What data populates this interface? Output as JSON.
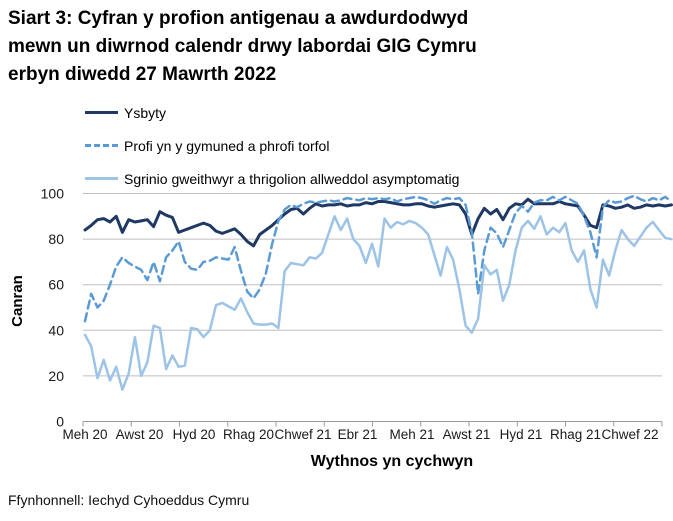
{
  "title": "Siart 3: Cyfran y profion antigenau a awdurdodwyd mewn un diwrnod calendr drwy labordai GIG Cymru erbyn diwedd 27 Mawrth 2022",
  "footer": "Ffynhonnell: Iechyd Cyhoeddus Cymru",
  "legend": {
    "items": [
      {
        "label": "Ysbyty"
      },
      {
        "label": "Profi yn y gymuned a phrofi torfol"
      },
      {
        "label": "Sgrinio gweithwyr a thrigolion allweddol asymptomatig"
      }
    ]
  },
  "chart_data": {
    "type": "line",
    "title": "Siart 3: Cyfran y profion antigenau a awdurdodwyd mewn un diwrnod calendr drwy labordai GIG Cymru erbyn diwedd 27 Mawrth 2022",
    "xlabel": "Wythnos yn cychwyn",
    "ylabel": "Canran",
    "ylim": [
      0,
      100
    ],
    "y_ticks": [
      0,
      20,
      40,
      60,
      80,
      100
    ],
    "x_tick_labels": [
      "Meh 20",
      "Awst 20",
      "Hyd 20",
      "Rhag 20",
      "Chwef 21",
      "Ebr 21",
      "Meh 21",
      "Awst 21",
      "Hyd 21",
      "Rhag 21",
      "Chwef 22"
    ],
    "x_unit": "wythnosol (weekly points, Meh 2020 - Maw 2022)",
    "grid": "horizontal",
    "legend_position": "top-left",
    "colors": {
      "gridline": "#BFBFBF",
      "axis": "#9B9B9B",
      "text": "#1a1a1a"
    },
    "series": [
      {
        "name": "Ysbyty",
        "style": "solid",
        "color": "#1F3864",
        "values": [
          84,
          86,
          88.5,
          89,
          87.5,
          90,
          83,
          88.5,
          87.5,
          88,
          88.5,
          85.5,
          92,
          90.5,
          89.5,
          83,
          84,
          85,
          86,
          87,
          86,
          83.5,
          82.5,
          83.5,
          84.5,
          82,
          79,
          77,
          82,
          84,
          86,
          88.5,
          91,
          93,
          93.5,
          91,
          93.5,
          95.5,
          94.5,
          95,
          95,
          95.5,
          94.5,
          95,
          95,
          96,
          95.5,
          96.5,
          96.5,
          96,
          95.5,
          95,
          95,
          95.5,
          95.5,
          94.5,
          94,
          94.5,
          95,
          95.5,
          95,
          91,
          82,
          89,
          93.5,
          91,
          93,
          88.5,
          93.5,
          95.5,
          95,
          97.5,
          95.5,
          95.5,
          95.5,
          95.5,
          96.5,
          95.5,
          95,
          94.5,
          90.5,
          86,
          85,
          95,
          94.5,
          93.5,
          94,
          95,
          93.5,
          94,
          95,
          94.5,
          95,
          94.5,
          95
        ]
      },
      {
        "name": "Profi yn y gymuned a phrofi torfol",
        "style": "dashed",
        "color": "#5B9BD5",
        "values": [
          44,
          56,
          50,
          53,
          60,
          68,
          72,
          69.5,
          68,
          66.5,
          62,
          70,
          61.5,
          72,
          75,
          79,
          70,
          67,
          66.5,
          70,
          70.5,
          72,
          71.5,
          71,
          76.5,
          66,
          57,
          54,
          58,
          65,
          78,
          88,
          93,
          95,
          94,
          95.5,
          96.5,
          96,
          96.5,
          97,
          96.5,
          97,
          98,
          97.5,
          97,
          98,
          97.5,
          98,
          97.5,
          98,
          96.5,
          97.5,
          98,
          98.5,
          98,
          97,
          95.5,
          97,
          98,
          97.5,
          98,
          95,
          83,
          56,
          75,
          85,
          82.5,
          76.5,
          84,
          91.5,
          94.5,
          92,
          96,
          97,
          97,
          98.5,
          97,
          98.5,
          97,
          95.5,
          90,
          83,
          72,
          94,
          97,
          96,
          96.5,
          98,
          99,
          97.5,
          96.5,
          98,
          97,
          98.5,
          96.5
        ]
      },
      {
        "name": "Sgrinio gweithwyr a thrigolion allweddol asymptomatig",
        "style": "solid",
        "color": "#9DC3E6",
        "values": [
          38,
          33,
          19,
          27,
          18,
          24,
          14,
          21,
          37,
          20,
          26,
          42,
          41,
          23,
          29,
          24,
          24.5,
          41,
          40.5,
          37,
          40,
          51,
          52,
          50.5,
          49,
          54,
          48,
          43,
          42.5,
          42.5,
          43,
          41,
          66,
          69.5,
          69,
          68.5,
          72,
          71.5,
          74,
          82,
          90,
          84,
          89,
          80,
          77,
          69.5,
          78,
          68,
          89,
          85,
          87.5,
          86.5,
          88,
          87,
          85,
          82,
          73,
          64,
          76.5,
          71,
          58,
          42,
          39,
          45,
          68.5,
          64.5,
          66.5,
          53,
          60,
          75,
          85,
          88,
          84.5,
          90,
          82,
          85,
          83,
          87,
          75,
          70,
          75,
          58,
          50,
          71,
          64,
          75,
          84,
          80,
          77,
          81,
          85,
          87.5,
          84,
          80.5,
          80
        ]
      }
    ]
  }
}
